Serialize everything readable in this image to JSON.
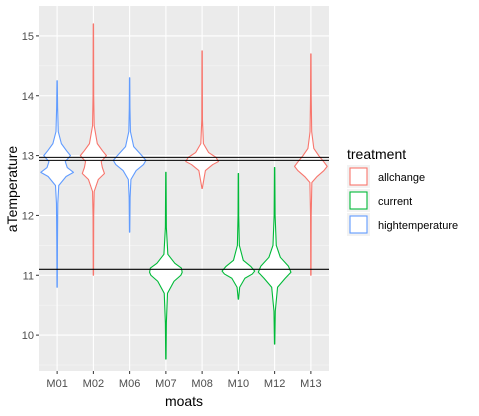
{
  "chart_data": {
    "type": "violin",
    "xlabel": "moats",
    "ylabel": "aTemperature",
    "categories": [
      "M01",
      "M02",
      "M06",
      "M07",
      "M08",
      "M10",
      "M12",
      "M13"
    ],
    "ylim": [
      9.4,
      15.5
    ],
    "y_ticks": [
      10,
      11,
      12,
      13,
      14,
      15
    ],
    "grid": true,
    "legend": {
      "title": "treatment",
      "placement": "right",
      "entries": [
        {
          "label": "allchange",
          "color": "#F8766D"
        },
        {
          "label": "current",
          "color": "#00BA38"
        },
        {
          "label": "hightemperature",
          "color": "#619CFF"
        }
      ]
    },
    "reference_lines": [
      11.1,
      12.92,
      12.97
    ],
    "series": [
      {
        "category": "M01",
        "treatment": "hightemperature",
        "min": 10.8,
        "max": 14.25,
        "profile": [
          [
            10.8,
            0.01
          ],
          [
            11.5,
            0.02
          ],
          [
            12.2,
            0.04
          ],
          [
            12.5,
            0.1
          ],
          [
            12.65,
            0.55
          ],
          [
            12.72,
            1.0
          ],
          [
            12.8,
            0.62
          ],
          [
            12.9,
            0.5
          ],
          [
            13.0,
            0.82
          ],
          [
            13.08,
            0.58
          ],
          [
            13.2,
            0.26
          ],
          [
            13.4,
            0.07
          ],
          [
            13.8,
            0.03
          ],
          [
            14.25,
            0.01
          ]
        ]
      },
      {
        "category": "M02",
        "treatment": "allchange",
        "min": 11.0,
        "max": 15.2,
        "profile": [
          [
            11.0,
            0.01
          ],
          [
            12.0,
            0.02
          ],
          [
            12.4,
            0.05
          ],
          [
            12.6,
            0.3
          ],
          [
            12.7,
            0.68
          ],
          [
            12.8,
            0.55
          ],
          [
            12.9,
            0.48
          ],
          [
            13.0,
            0.8
          ],
          [
            13.08,
            0.56
          ],
          [
            13.2,
            0.24
          ],
          [
            13.5,
            0.05
          ],
          [
            14.0,
            0.02
          ],
          [
            15.2,
            0.01
          ]
        ]
      },
      {
        "category": "M06",
        "treatment": "hightemperature",
        "min": 11.72,
        "max": 14.3,
        "profile": [
          [
            11.72,
            0.01
          ],
          [
            12.3,
            0.03
          ],
          [
            12.6,
            0.08
          ],
          [
            12.75,
            0.4
          ],
          [
            12.85,
            0.85
          ],
          [
            12.92,
            1.0
          ],
          [
            13.0,
            0.75
          ],
          [
            13.15,
            0.25
          ],
          [
            13.4,
            0.05
          ],
          [
            13.8,
            0.02
          ],
          [
            14.3,
            0.01
          ]
        ]
      },
      {
        "category": "M07",
        "treatment": "current",
        "min": 9.6,
        "max": 12.72,
        "profile": [
          [
            9.6,
            0.01
          ],
          [
            10.2,
            0.03
          ],
          [
            10.7,
            0.1
          ],
          [
            10.9,
            0.5
          ],
          [
            11.0,
            0.92
          ],
          [
            11.05,
            1.0
          ],
          [
            11.12,
            0.95
          ],
          [
            11.2,
            0.55
          ],
          [
            11.35,
            0.12
          ],
          [
            11.8,
            0.03
          ],
          [
            12.72,
            0.01
          ]
        ]
      },
      {
        "category": "M08",
        "treatment": "allchange",
        "min": 12.45,
        "max": 14.75,
        "profile": [
          [
            12.45,
            0.01
          ],
          [
            12.75,
            0.2
          ],
          [
            12.85,
            0.65
          ],
          [
            12.9,
            1.0
          ],
          [
            12.97,
            0.85
          ],
          [
            13.05,
            0.4
          ],
          [
            13.2,
            0.08
          ],
          [
            13.6,
            0.02
          ],
          [
            14.75,
            0.01
          ]
        ]
      },
      {
        "category": "M10",
        "treatment": "current",
        "min": 10.6,
        "max": 12.7,
        "profile": [
          [
            10.6,
            0.01
          ],
          [
            10.8,
            0.08
          ],
          [
            10.95,
            0.4
          ],
          [
            11.02,
            0.85
          ],
          [
            11.07,
            1.0
          ],
          [
            11.15,
            0.75
          ],
          [
            11.25,
            0.3
          ],
          [
            11.5,
            0.06
          ],
          [
            12.0,
            0.02
          ],
          [
            12.7,
            0.01
          ]
        ]
      },
      {
        "category": "M12",
        "treatment": "current",
        "min": 9.85,
        "max": 12.8,
        "profile": [
          [
            9.85,
            0.01
          ],
          [
            10.4,
            0.04
          ],
          [
            10.8,
            0.18
          ],
          [
            10.95,
            0.65
          ],
          [
            11.05,
            1.0
          ],
          [
            11.15,
            0.85
          ],
          [
            11.3,
            0.35
          ],
          [
            11.5,
            0.1
          ],
          [
            12.0,
            0.03
          ],
          [
            12.8,
            0.01
          ]
        ]
      },
      {
        "category": "M13",
        "treatment": "allchange",
        "min": 11.0,
        "max": 14.7,
        "profile": [
          [
            11.0,
            0.01
          ],
          [
            12.0,
            0.02
          ],
          [
            12.55,
            0.06
          ],
          [
            12.65,
            0.38
          ],
          [
            12.75,
            0.8
          ],
          [
            12.82,
            1.0
          ],
          [
            12.9,
            0.78
          ],
          [
            13.0,
            0.48
          ],
          [
            13.12,
            0.18
          ],
          [
            13.4,
            0.05
          ],
          [
            14.0,
            0.02
          ],
          [
            14.7,
            0.01
          ]
        ]
      }
    ]
  }
}
